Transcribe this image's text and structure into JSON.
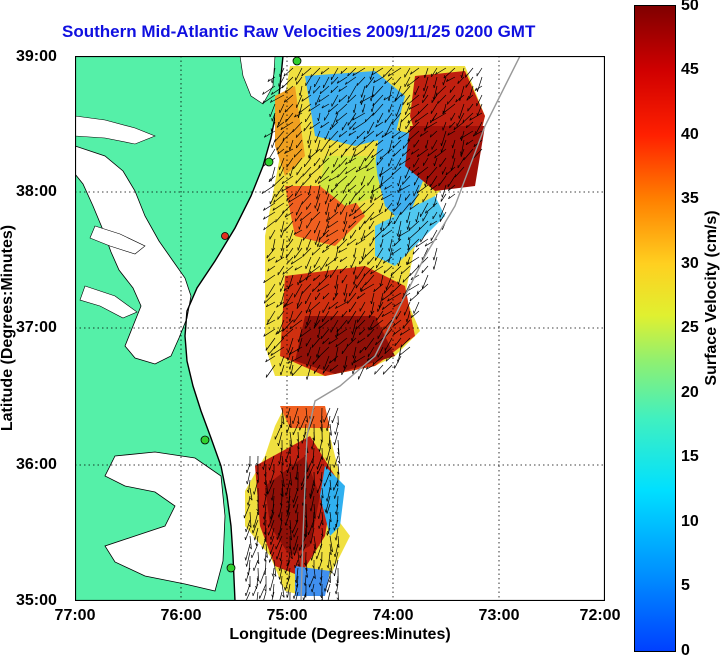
{
  "title": "Southern Mid-Atlantic Raw Velocities 2009/11/25 0200 GMT",
  "x_axis": {
    "label": "Longitude (Degrees:Minutes)",
    "ticks": [
      "77:00",
      "76:00",
      "75:00",
      "74:00",
      "73:00",
      "72:00"
    ],
    "range": [
      -77,
      -72
    ]
  },
  "y_axis": {
    "label": "Latitude (Degrees:Minutes)",
    "ticks": [
      "39:00",
      "38:00",
      "37:00",
      "36:00",
      "35:00"
    ],
    "range": [
      35,
      39
    ]
  },
  "colorbar": {
    "label": "Surface Velocity (cm/s)",
    "ticks": [
      "50",
      "45",
      "40",
      "35",
      "30",
      "25",
      "20",
      "15",
      "10",
      "5",
      "0"
    ],
    "range": [
      0,
      50
    ]
  },
  "colors": {
    "title": "#1010e0",
    "land": "#55f0a8",
    "ocean": "#ffffff",
    "station": "#30d030",
    "station_alt": "#e03020"
  },
  "map": {
    "region": "Southern Mid-Atlantic",
    "features": [
      "coastline",
      "current-vector-arrows",
      "velocity-color-field",
      "radar-stations",
      "grid"
    ]
  }
}
